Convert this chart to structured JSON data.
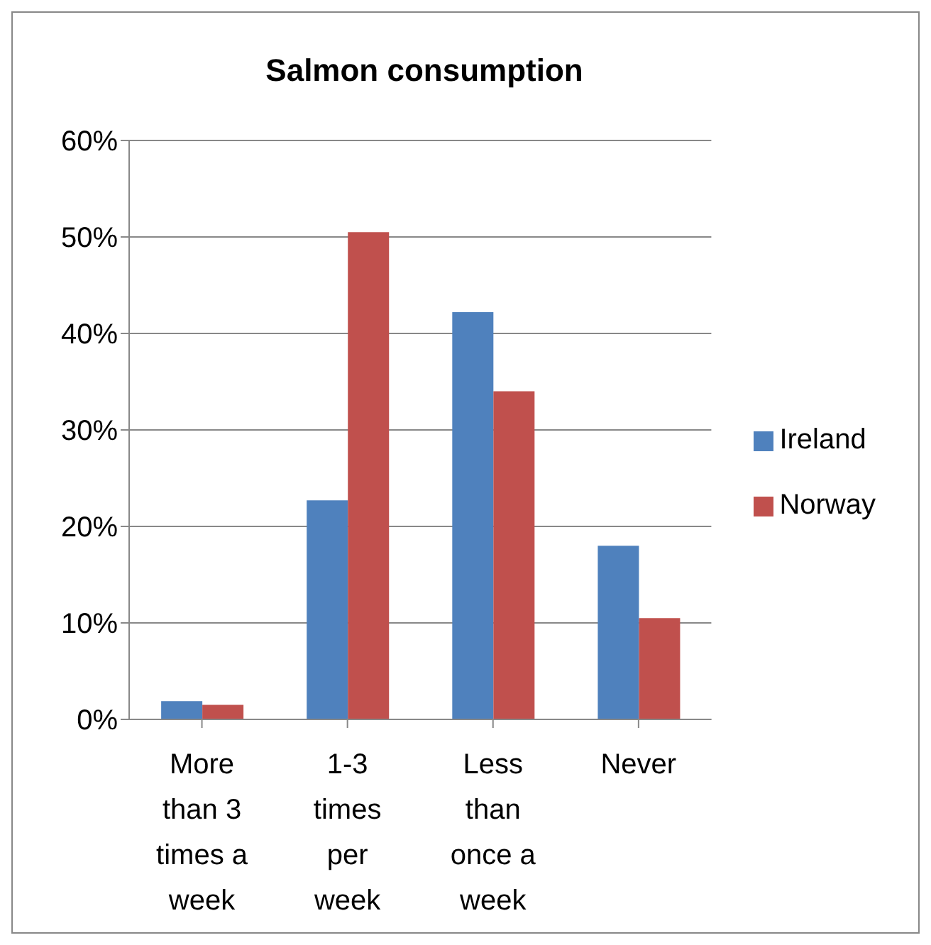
{
  "chart_data": {
    "type": "bar",
    "title": "Salmon consumption",
    "categories": [
      "More than 3 times a week",
      "1-3 times per week",
      "Less than once a week",
      "Never"
    ],
    "series": [
      {
        "name": "Ireland",
        "color": "#4f81bd",
        "values": [
          1.9,
          22.7,
          42.2,
          18.0
        ]
      },
      {
        "name": "Norway",
        "color": "#c0504d",
        "values": [
          1.5,
          50.5,
          34.0,
          10.5
        ]
      }
    ],
    "ylim": [
      0,
      60
    ],
    "yticks": [
      {
        "value": 0,
        "label": "0%"
      },
      {
        "value": 10,
        "label": "10%"
      },
      {
        "value": 20,
        "label": "20%"
      },
      {
        "value": 30,
        "label": "30%"
      },
      {
        "value": 40,
        "label": "40%"
      },
      {
        "value": 50,
        "label": "50%"
      },
      {
        "value": 60,
        "label": "60%"
      }
    ],
    "grid": "y",
    "legend": "right"
  }
}
